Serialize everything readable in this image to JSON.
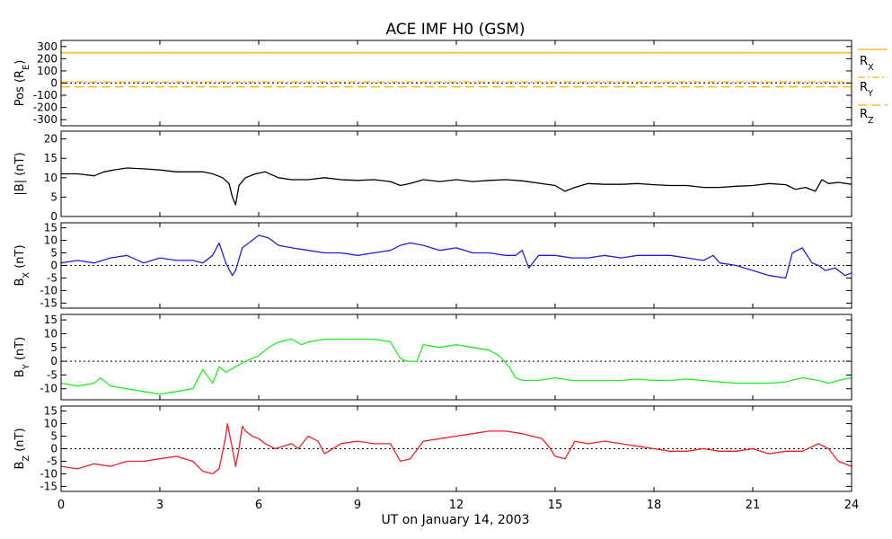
{
  "title": "ACE IMF H0 (GSM)",
  "xlabel": "UT on January 14, 2003",
  "colors": {
    "rx": "#ffb000",
    "ry": "#ffb000",
    "rz": "#ffb000",
    "bmag": "#000000",
    "bx": "#2020e0",
    "by": "#20f020",
    "bz": "#f02020",
    "zero_line": "#000000"
  },
  "chart_data": [
    {
      "type": "line",
      "panel": "position",
      "ylabel": {
        "main": "Pos (R",
        "sub": "E",
        "tail": ")"
      },
      "ylim": [
        -350,
        350
      ],
      "yticks": [
        -300,
        -200,
        -100,
        0,
        100,
        200,
        300
      ],
      "ytick_labels": [
        "-300",
        "-200",
        "-100",
        "0",
        "100",
        "200",
        "300"
      ],
      "zero_line": true,
      "series": [
        {
          "key": "rx",
          "x": [
            0,
            24
          ],
          "values": [
            248,
            248
          ],
          "style": "solid"
        },
        {
          "key": "ry",
          "x": [
            0,
            24
          ],
          "values": [
            10,
            10
          ],
          "style": "dash-dot"
        },
        {
          "key": "rz",
          "x": [
            0,
            24
          ],
          "values": [
            -30,
            -30
          ],
          "style": "dashed"
        }
      ],
      "side_labels": [
        {
          "main": "R",
          "sub": "X"
        },
        {
          "main": "R",
          "sub": "Y"
        },
        {
          "main": "R",
          "sub": "Z"
        }
      ]
    },
    {
      "type": "line",
      "panel": "bmag",
      "ylabel": {
        "main": "|B| (nT)",
        "sub": "",
        "tail": ""
      },
      "ylim": [
        0,
        22
      ],
      "yticks": [
        0,
        5,
        10,
        15,
        20
      ],
      "ytick_labels": [
        "0",
        "5",
        "10",
        "15",
        "20"
      ],
      "zero_line": false,
      "series": [
        {
          "key": "bmag",
          "x": [
            0,
            0.5,
            1,
            1.3,
            1.6,
            2,
            2.5,
            3,
            3.5,
            4,
            4.3,
            4.6,
            4.9,
            5.1,
            5.2,
            5.3,
            5.4,
            5.6,
            5.9,
            6.2,
            6.6,
            7,
            7.5,
            8,
            8.5,
            9,
            9.5,
            10,
            10.3,
            10.6,
            11,
            11.5,
            12,
            12.5,
            13,
            13.5,
            14,
            14.5,
            15,
            15.3,
            15.6,
            16,
            16.5,
            17,
            17.5,
            18,
            18.5,
            19,
            19.5,
            20,
            20.5,
            21,
            21.5,
            22,
            22.3,
            22.6,
            22.9,
            23.1,
            23.3,
            23.6,
            24
          ],
          "values": [
            11,
            11,
            10.5,
            11.5,
            12,
            12.5,
            12.3,
            12,
            11.5,
            11.5,
            11.5,
            11,
            10,
            8.5,
            5,
            3,
            8,
            10,
            11,
            11.5,
            10,
            9.5,
            9.5,
            10,
            9.5,
            9.3,
            9.5,
            9,
            8,
            8.5,
            9.5,
            9,
            9.5,
            9,
            9.3,
            9.5,
            9.2,
            8.6,
            8,
            6.5,
            7.5,
            8.5,
            8.3,
            8.3,
            8.5,
            8.2,
            8,
            8,
            7.5,
            7.5,
            7.8,
            8,
            8.5,
            8.2,
            7,
            7.5,
            6.5,
            9.5,
            8.5,
            8.8,
            8.3
          ]
        }
      ]
    },
    {
      "type": "line",
      "panel": "bx",
      "ylabel": {
        "main": "B",
        "sub": "X",
        "tail": " (nT)"
      },
      "ylim": [
        -17,
        17
      ],
      "yticks": [
        -15,
        -10,
        -5,
        0,
        5,
        10,
        15
      ],
      "ytick_labels": [
        "-15",
        "-10",
        "-5",
        "0",
        "5",
        "10",
        "15"
      ],
      "zero_line": true,
      "series": [
        {
          "key": "bx",
          "x": [
            0,
            0.5,
            1,
            1.5,
            2,
            2.5,
            3,
            3.5,
            4,
            4.3,
            4.6,
            4.8,
            5,
            5.2,
            5.3,
            5.5,
            5.8,
            6,
            6.3,
            6.6,
            7,
            7.5,
            8,
            8.5,
            9,
            9.5,
            10,
            10.3,
            10.6,
            11,
            11.5,
            12,
            12.5,
            13,
            13.5,
            13.8,
            14,
            14.2,
            14.5,
            15,
            15.5,
            16,
            16.5,
            17,
            17.5,
            18,
            18.5,
            19,
            19.5,
            19.8,
            20,
            20.5,
            21,
            21.5,
            22,
            22.2,
            22.5,
            22.8,
            23,
            23.2,
            23.5,
            23.8,
            24
          ],
          "values": [
            1,
            2,
            1,
            3,
            4,
            1,
            3,
            2,
            2,
            1,
            4,
            9,
            1,
            -4,
            -2,
            7,
            10,
            12,
            11,
            8,
            7,
            6,
            5,
            5,
            4,
            5,
            6,
            8,
            9,
            8,
            6,
            7,
            5,
            5,
            4,
            4,
            6,
            -1,
            4,
            4,
            3,
            3,
            4,
            3,
            4,
            4,
            4,
            3,
            2,
            4,
            1,
            0,
            -2,
            -4,
            -5,
            5,
            7,
            1,
            0,
            -2,
            -1,
            -4,
            -3
          ]
        }
      ]
    },
    {
      "type": "line",
      "panel": "by",
      "ylabel": {
        "main": "B",
        "sub": "Y",
        "tail": " (nT)"
      },
      "ylim": [
        -14,
        17
      ],
      "yticks": [
        -10,
        -5,
        0,
        5,
        10,
        15
      ],
      "ytick_labels": [
        "-10",
        "-5",
        "0",
        "5",
        "10",
        "15"
      ],
      "zero_line": true,
      "series": [
        {
          "key": "by",
          "x": [
            0,
            0.5,
            1,
            1.2,
            1.5,
            2,
            2.5,
            3,
            3.5,
            4,
            4.3,
            4.6,
            4.8,
            5,
            5.3,
            5.6,
            6,
            6.3,
            6.6,
            7,
            7.3,
            7.5,
            8,
            8.5,
            9,
            9.5,
            10,
            10.3,
            10.5,
            10.8,
            11,
            11.5,
            12,
            12.5,
            13,
            13.3,
            13.6,
            13.8,
            14,
            14.5,
            15,
            15.5,
            16,
            16.5,
            17,
            17.5,
            18,
            18.5,
            19,
            19.5,
            20,
            20.5,
            21,
            21.5,
            22,
            22.5,
            23,
            23.3,
            23.6,
            24
          ],
          "values": [
            -8,
            -9,
            -8,
            -6,
            -9,
            -10,
            -11,
            -12,
            -11,
            -10,
            -3,
            -8,
            -2,
            -4,
            -2,
            0,
            2,
            5,
            7,
            8,
            6,
            7,
            8,
            8,
            8,
            8,
            7,
            1,
            0,
            0,
            6,
            5,
            6,
            5,
            4,
            2,
            -2,
            -6,
            -7,
            -7,
            -6,
            -7,
            -7,
            -7,
            -7,
            -6.5,
            -7,
            -7,
            -6.5,
            -7,
            -7.5,
            -8,
            -8,
            -8,
            -7.5,
            -6,
            -7,
            -8,
            -7,
            -6
          ]
        }
      ]
    },
    {
      "type": "line",
      "panel": "bz",
      "ylabel": {
        "main": "B",
        "sub": "Z",
        "tail": " (nT)"
      },
      "ylim": [
        -17,
        17
      ],
      "yticks": [
        -15,
        -10,
        -5,
        0,
        5,
        10,
        15
      ],
      "ytick_labels": [
        "-15",
        "-10",
        "-5",
        "0",
        "5",
        "10",
        "15"
      ],
      "zero_line": true,
      "series": [
        {
          "key": "bz",
          "x": [
            0,
            0.5,
            1,
            1.5,
            2,
            2.5,
            3,
            3.5,
            4,
            4.3,
            4.6,
            4.8,
            5,
            5.05,
            5.2,
            5.3,
            5.4,
            5.5,
            5.6,
            5.8,
            6,
            6.2,
            6.5,
            7,
            7.2,
            7.5,
            7.8,
            8,
            8.5,
            9,
            9.5,
            10,
            10.3,
            10.6,
            11,
            11.5,
            12,
            12.5,
            13,
            13.5,
            14,
            14.3,
            14.6,
            14.8,
            15,
            15.3,
            15.6,
            16,
            16.5,
            17,
            17.5,
            18,
            18.5,
            19,
            19.5,
            20,
            20.5,
            21,
            21.5,
            22,
            22.5,
            23,
            23.3,
            23.6,
            24
          ],
          "values": [
            -7,
            -8,
            -6,
            -7,
            -5,
            -5,
            -4,
            -3,
            -5,
            -9,
            -10,
            -8,
            5,
            10,
            0,
            -7,
            0,
            9,
            7,
            5,
            4,
            2,
            0,
            2,
            0,
            5,
            3,
            -2,
            2,
            3,
            2,
            2,
            -5,
            -4,
            3,
            4,
            5,
            6,
            7,
            7,
            6,
            5,
            4,
            1,
            -3,
            -4,
            3,
            2,
            3,
            2,
            1,
            0,
            -1,
            -1,
            0,
            -1,
            -1,
            0,
            -2,
            -1,
            -1,
            2,
            0,
            -5,
            -7
          ]
        }
      ]
    }
  ],
  "xaxis": {
    "xlim": [
      0,
      24
    ],
    "ticks": [
      0,
      3,
      6,
      9,
      12,
      15,
      18,
      21,
      24
    ],
    "tick_labels": [
      "0",
      "3",
      "6",
      "9",
      "12",
      "15",
      "18",
      "21",
      "24"
    ]
  }
}
